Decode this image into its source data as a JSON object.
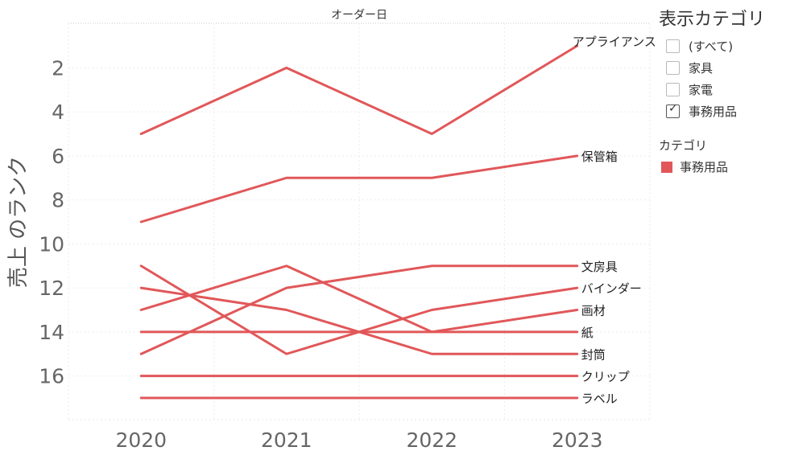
{
  "header": {
    "column_title": "オーダー日"
  },
  "filter": {
    "title": "表示カテゴリ",
    "options": [
      {
        "label": "(すべて)",
        "checked": false
      },
      {
        "label": "家具",
        "checked": false
      },
      {
        "label": "家電",
        "checked": false
      },
      {
        "label": "事務用品",
        "checked": true
      }
    ]
  },
  "legend": {
    "title": "カテゴリ",
    "items": [
      {
        "label": "事務用品",
        "color": "#e15759"
      }
    ]
  },
  "chart_data": {
    "type": "line",
    "ylabel": "売上 のランク",
    "y_reversed": true,
    "ylim": [
      0,
      18
    ],
    "yticks": [
      2,
      4,
      6,
      8,
      10,
      12,
      14,
      16
    ],
    "x": [
      "2020",
      "2021",
      "2022",
      "2023"
    ],
    "color": "#e15759",
    "series": [
      {
        "name": "アプライアンス",
        "values": [
          5,
          2,
          5,
          1
        ]
      },
      {
        "name": "保管箱",
        "values": [
          9,
          7,
          7,
          6
        ]
      },
      {
        "name": "文房具",
        "values": [
          15,
          12,
          11,
          11
        ]
      },
      {
        "name": "バインダー",
        "values": [
          11,
          15,
          13,
          12
        ]
      },
      {
        "name": "画材",
        "values": [
          13,
          11,
          14,
          13
        ]
      },
      {
        "name": "紙",
        "values": [
          14,
          14,
          14,
          14
        ]
      },
      {
        "name": "封筒",
        "values": [
          12,
          13,
          15,
          15
        ]
      },
      {
        "name": "クリップ",
        "values": [
          16,
          16,
          16,
          16
        ]
      },
      {
        "name": "ラベル",
        "values": [
          17,
          17,
          17,
          17
        ]
      }
    ]
  }
}
